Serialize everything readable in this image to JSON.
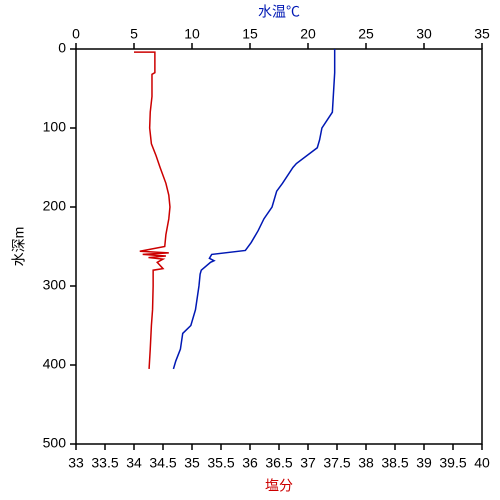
{
  "chart_data": {
    "type": "line",
    "ylabel": "水深m",
    "ylim": [
      0,
      500
    ],
    "yticks": [
      0,
      100,
      200,
      300,
      400,
      500
    ],
    "y_inverted": true,
    "xlabel": "塩分",
    "xlim": [
      33,
      40
    ],
    "xticks": [
      33,
      33.5,
      34,
      34.5,
      35,
      35.5,
      36,
      36.5,
      37,
      37.5,
      38,
      38.5,
      39,
      39.5,
      40
    ],
    "x2label": "水温℃",
    "x2lim": [
      0,
      35
    ],
    "x2ticks": [
      0,
      5,
      10,
      15,
      20,
      25,
      30,
      35
    ],
    "series": [
      {
        "color": "#cc0000",
        "axis": "x",
        "x": [
          34.0,
          34.36,
          34.36,
          34.31,
          34.31,
          34.28,
          34.27,
          34.3,
          34.38,
          34.45,
          34.55,
          34.6,
          34.62,
          34.6,
          34.55,
          34.53,
          34.1,
          34.6,
          34.15,
          34.55,
          34.25,
          34.5,
          34.4,
          34.5,
          34.33,
          34.33,
          34.32,
          34.3,
          34.28,
          34.26
        ],
        "y": [
          4,
          4,
          30,
          32,
          60,
          80,
          100,
          120,
          135,
          150,
          170,
          185,
          200,
          215,
          235,
          250,
          256,
          258,
          260,
          262,
          264,
          266,
          270,
          278,
          280,
          300,
          330,
          350,
          380,
          405
        ]
      },
      {
        "color": "#0018b4",
        "axis": "x2",
        "x": [
          22.3,
          22.3,
          22.1,
          21.2,
          21.0,
          20.8,
          19.0,
          18.7,
          17.8,
          17.3,
          16.9,
          16.2,
          15.7,
          15.1,
          14.6,
          11.7,
          11.5,
          11.9,
          11.6,
          10.8,
          10.7,
          10.6,
          10.3,
          9.9,
          9.2,
          9.0,
          8.6,
          8.4
        ],
        "y": [
          0,
          30,
          80,
          100,
          115,
          125,
          145,
          150,
          170,
          180,
          200,
          215,
          230,
          245,
          255,
          260,
          265,
          268,
          270,
          280,
          285,
          300,
          330,
          350,
          360,
          380,
          395,
          405
        ]
      }
    ]
  }
}
